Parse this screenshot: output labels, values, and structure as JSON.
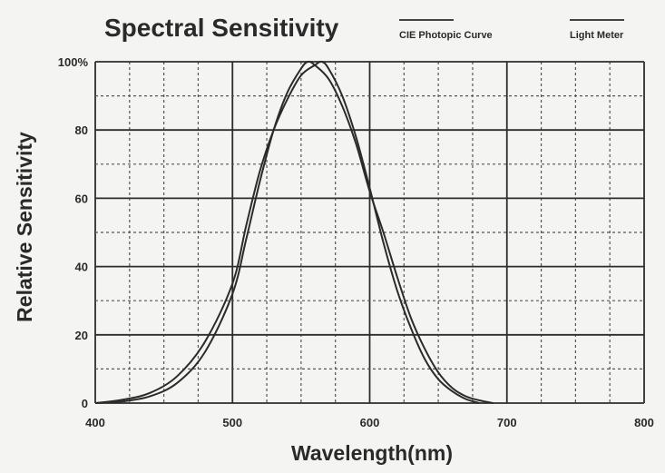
{
  "chart_data": {
    "type": "line",
    "title": "Spectral Sensitivity",
    "xlabel": "Wavelength(nm)",
    "ylabel": "Relative Sensitivity",
    "xlim": [
      400,
      800
    ],
    "ylim": [
      0,
      100
    ],
    "x_ticks": [
      "400",
      "500",
      "600",
      "700",
      "800"
    ],
    "y_ticks": [
      "0",
      "20",
      "40",
      "60",
      "80",
      "100%"
    ],
    "grid": true,
    "legend_position": "top-right",
    "legend": [
      "CIE Photopic Curve",
      "Light Meter"
    ],
    "series": [
      {
        "name": "CIE Photopic Curve",
        "x": [
          400,
          420,
          440,
          460,
          480,
          500,
          510,
          520,
          530,
          540,
          550,
          555,
          560,
          570,
          580,
          590,
          600,
          610,
          620,
          630,
          640,
          650,
          660,
          670,
          680,
          690
        ],
        "y": [
          0,
          0.5,
          2,
          6,
          15,
          32,
          48,
          65,
          80,
          91,
          98,
          100,
          99,
          95,
          87,
          76,
          62,
          50,
          37,
          25,
          16,
          9,
          4.5,
          2,
          0.8,
          0
        ]
      },
      {
        "name": "Light Meter",
        "x": [
          400,
          420,
          440,
          460,
          480,
          500,
          510,
          520,
          530,
          540,
          550,
          560,
          565,
          570,
          580,
          590,
          600,
          610,
          620,
          630,
          640,
          650,
          660,
          670,
          680
        ],
        "y": [
          0,
          1,
          3,
          8,
          18,
          35,
          52,
          68,
          80,
          89,
          96,
          99,
          100,
          98,
          90,
          78,
          63,
          47,
          33,
          22,
          13,
          7,
          3.5,
          1.2,
          0
        ]
      }
    ]
  },
  "colors": {
    "background": "#f4f4f2",
    "ink": "#2b2b2b"
  }
}
